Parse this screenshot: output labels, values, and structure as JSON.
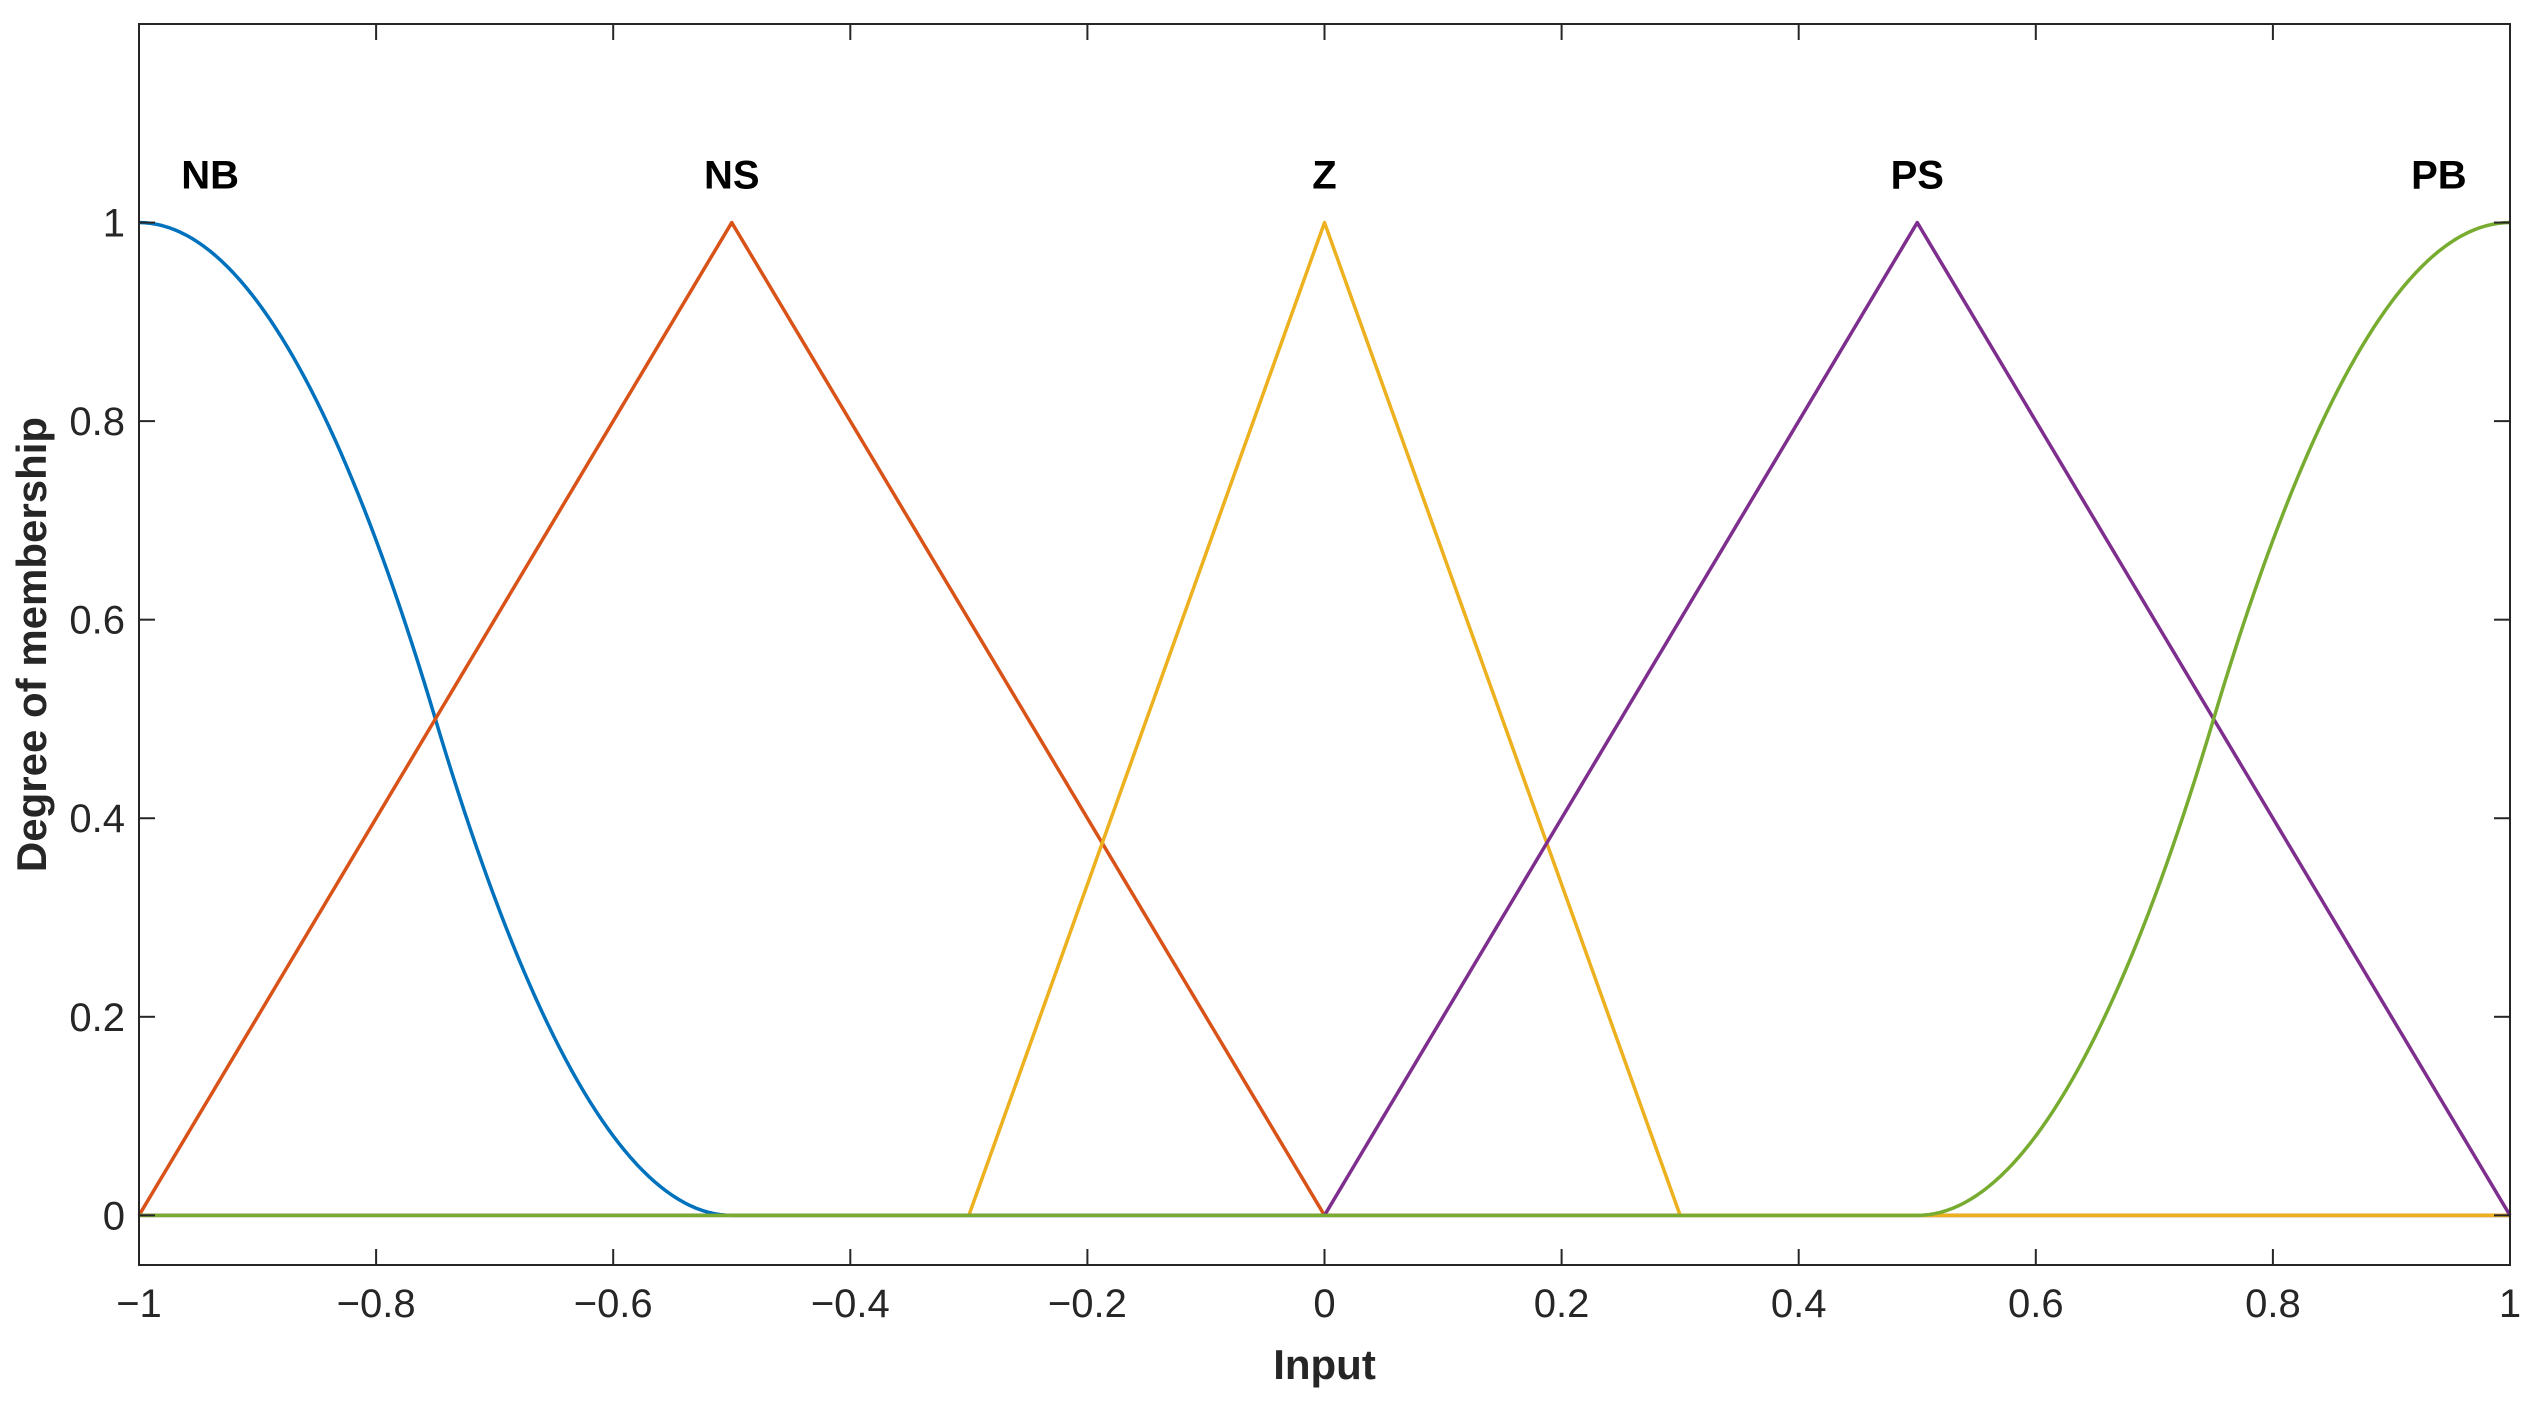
{
  "chart_data": {
    "type": "line",
    "title": "",
    "xlabel": "Input",
    "ylabel": "Degree of membership",
    "xlim": [
      -1,
      1
    ],
    "ylim": [
      -0.05,
      1.2
    ],
    "grid": false,
    "xticks": [
      -1,
      -0.8,
      -0.6,
      -0.4,
      -0.2,
      0,
      0.2,
      0.4,
      0.6,
      0.8,
      1
    ],
    "xtick_labels": [
      "−1",
      "−0.8",
      "−0.6",
      "−0.4",
      "−0.2",
      "0",
      "0.2",
      "0.4",
      "0.6",
      "0.8",
      "1"
    ],
    "yticks": [
      0,
      0.2,
      0.4,
      0.6,
      0.8,
      1
    ],
    "ytick_labels": [
      "0",
      "0.2",
      "0.4",
      "0.6",
      "0.8",
      "1"
    ],
    "series": [
      {
        "name": "NB",
        "shape": "zmf",
        "params": [
          -1,
          -0.5
        ],
        "color": "#0072BD",
        "label_x": -0.94,
        "x": [
          -1,
          -0.875,
          -0.75,
          -0.625,
          -0.5
        ],
        "y": [
          1,
          0.875,
          0.5,
          0.125,
          0
        ]
      },
      {
        "name": "NS",
        "shape": "trimf",
        "params": [
          -1,
          -0.5,
          0
        ],
        "color": "#D95319",
        "label_x": -0.5,
        "x": [
          -1,
          -0.5,
          0
        ],
        "y": [
          0,
          1,
          0
        ]
      },
      {
        "name": "Z",
        "shape": "trimf",
        "params": [
          -0.3,
          0,
          0.3
        ],
        "color": "#EDB120",
        "label_x": 0,
        "x": [
          -0.3,
          0,
          0.3
        ],
        "y": [
          0,
          1,
          0
        ]
      },
      {
        "name": "PS",
        "shape": "trimf",
        "params": [
          0,
          0.5,
          1
        ],
        "color": "#7E2F8E",
        "label_x": 0.5,
        "x": [
          0,
          0.5,
          1
        ],
        "y": [
          0,
          1,
          0
        ]
      },
      {
        "name": "PB",
        "shape": "smf",
        "params": [
          0.5,
          1
        ],
        "color": "#77AC30",
        "label_x": 0.94,
        "x": [
          0.5,
          0.625,
          0.75,
          0.875,
          1
        ],
        "y": [
          0,
          0.125,
          0.5,
          0.875,
          1
        ]
      }
    ]
  }
}
